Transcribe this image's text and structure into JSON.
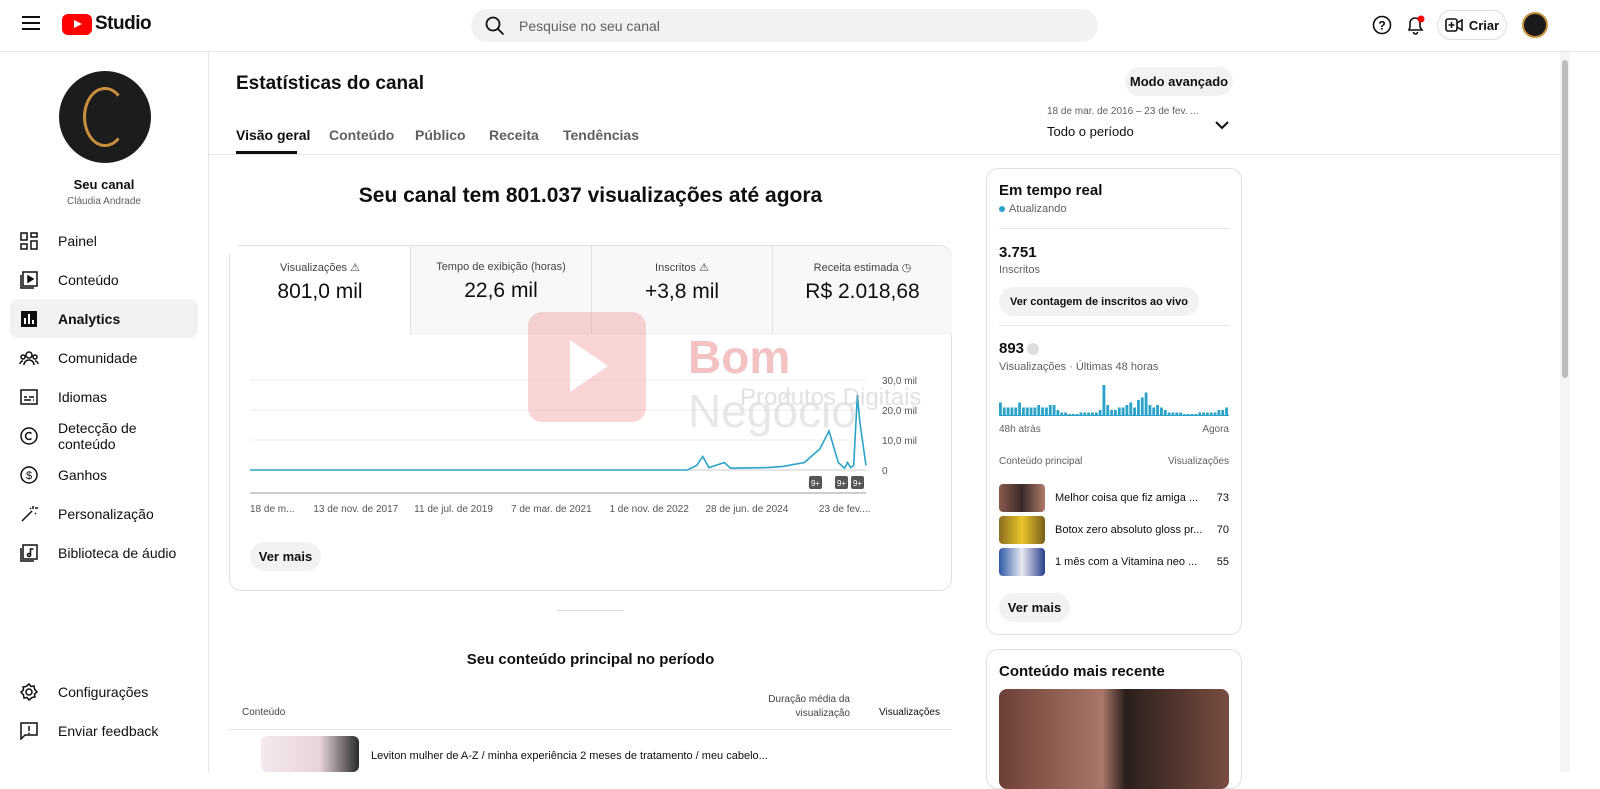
{
  "header": {
    "logo_text": "Studio",
    "search_placeholder": "Pesquise no seu canal",
    "create_label": "Criar"
  },
  "sidebar": {
    "channel_title": "Seu canal",
    "channel_name": "Cláudia Andrade",
    "items": [
      {
        "label": "Painel",
        "icon": "dashboard-icon"
      },
      {
        "label": "Conteúdo",
        "icon": "content-icon"
      },
      {
        "label": "Analytics",
        "icon": "analytics-icon",
        "selected": true
      },
      {
        "label": "Comunidade",
        "icon": "community-icon"
      },
      {
        "label": "Idiomas",
        "icon": "subtitles-icon"
      },
      {
        "label": "Detecção de conteúdo",
        "icon": "copyright-icon"
      },
      {
        "label": "Ganhos",
        "icon": "dollar-icon"
      },
      {
        "label": "Personalização",
        "icon": "magic-wand-icon"
      },
      {
        "label": "Biblioteca de áudio",
        "icon": "audio-library-icon"
      }
    ],
    "footer": [
      {
        "label": "Configurações",
        "icon": "gear-icon"
      },
      {
        "label": "Enviar feedback",
        "icon": "feedback-icon"
      }
    ]
  },
  "page": {
    "title": "Estatísticas do canal",
    "advanced_mode": "Modo avançado",
    "tabs": [
      "Visão geral",
      "Conteúdo",
      "Público",
      "Receita",
      "Tendências"
    ],
    "period_range": "18 de mar. de 2016 – 23 de fev. ...",
    "period_label": "Todo o período"
  },
  "overview": {
    "headline": "Seu canal tem 801.037 visualizações até agora",
    "metrics": [
      {
        "label": "Visualizações",
        "value": "801,0 mil",
        "icon": "warning-icon"
      },
      {
        "label": "Tempo de exibição (horas)",
        "value": "22,6 mil"
      },
      {
        "label": "Inscritos",
        "value": "+3,8 mil",
        "icon": "warning-icon"
      },
      {
        "label": "Receita estimada",
        "value": "R$ 2.018,68",
        "icon": "clock-icon"
      }
    ],
    "see_more": "Ver mais",
    "badge": "9+"
  },
  "chart_data": {
    "type": "line",
    "series": [
      {
        "values": [
          {
            "x": "18 de mar. de 2016",
            "y": 0
          },
          {
            "x": "1 de nov. de 2022",
            "y": 0
          },
          {
            "x": "jan. de 2023",
            "y": 1500
          },
          {
            "x": "fev. de 2023",
            "y": 4500
          },
          {
            "x": "mar. de 2023",
            "y": 800
          },
          {
            "x": "jun. de 2023",
            "y": 2500
          },
          {
            "x": "jul. de 2023",
            "y": 600
          },
          {
            "x": "2024",
            "y": 800
          },
          {
            "x": "28 de jun. de 2024",
            "y": 1200
          },
          {
            "x": "set. de 2024",
            "y": 2500
          },
          {
            "x": "nov. de 2024",
            "y": 7000
          },
          {
            "x": "dez. de 2024",
            "y": 13000
          },
          {
            "x": "jan. de 2025",
            "y": 2500
          },
          {
            "x": "mar. de 2025",
            "y": 600
          },
          {
            "x": "jun. de 2025",
            "y": 2500
          },
          {
            "x": "ago. de 2025",
            "y": 800
          },
          {
            "x": "dez. de 2025",
            "y": 1500
          },
          {
            "x": "jan. de 2026",
            "y": 25000
          },
          {
            "x": "fev. de 2026",
            "y": 16000
          },
          {
            "x": "23 de fev. de 2026",
            "y": 1500
          }
        ]
      }
    ],
    "xticks": [
      "18 de m...",
      "13 de nov. de 2017",
      "11 de jul. de 2019",
      "7 de mar. de 2021",
      "1 de nov. de 2022",
      "28 de jun. de 2024",
      "23 de fev...."
    ],
    "yticks": [
      "30,0 mil",
      "20,0 mil",
      "10,0 mil",
      "0"
    ],
    "ylim": [
      0,
      30000
    ],
    "grid": true,
    "color": "#2ba3c8"
  },
  "top_content": {
    "title": "Seu conteúdo principal no período",
    "col_content": "Conteúdo",
    "col_duration": "Duração média da visualização",
    "col_views": "Visualizações",
    "rows": [
      {
        "title": "Leviton mulher de A-Z / minha experiência 2 meses de tratamento / meu cabelo..."
      }
    ]
  },
  "realtime": {
    "title": "Em tempo real",
    "status": "Atualizando",
    "subs_value": "3.751",
    "subs_label": "Inscritos",
    "live_btn": "Ver contagem de inscritos ao vivo",
    "views_value": "893",
    "views_label": "Visualizações · Últimas 48 horas",
    "axis_start": "48h atrás",
    "axis_end": "Agora",
    "col_content": "Conteúdo principal",
    "col_views": "Visualizações",
    "bars": [
      5,
      3,
      3,
      3,
      3,
      5,
      3,
      3,
      3,
      3,
      4,
      3,
      3,
      4,
      4,
      2,
      1,
      1,
      0,
      0,
      0,
      1,
      1,
      1,
      1,
      1,
      2,
      12,
      4,
      2,
      2,
      3,
      3,
      4,
      5,
      3,
      6,
      7,
      9,
      4,
      3,
      4,
      3,
      2,
      1,
      1,
      1,
      1,
      0,
      0,
      0,
      0,
      1,
      1,
      1,
      1,
      1,
      2,
      2,
      3
    ],
    "rows": [
      {
        "title": "Melhor coisa que fiz amiga ...",
        "views": "73"
      },
      {
        "title": "Botox zero absoluto gloss pr...",
        "views": "70"
      },
      {
        "title": "1 mês com a Vitamina neo ...",
        "views": "55"
      }
    ],
    "see_more": "Ver mais"
  },
  "latest": {
    "title": "Conteúdo mais recente"
  },
  "watermark": {
    "line1": "Bom Negócio",
    "line2": "Produtos Digitais"
  },
  "colors": {
    "accent": "#2ba3c8",
    "brand": "#ff0000"
  }
}
